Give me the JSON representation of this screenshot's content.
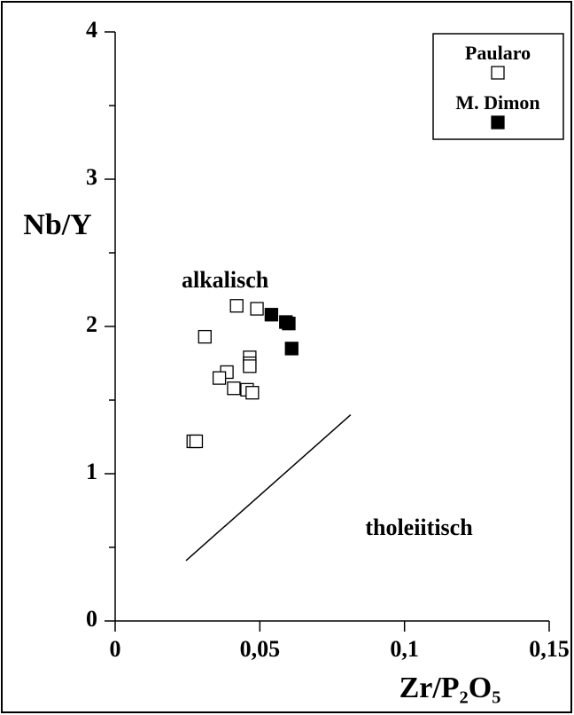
{
  "chart_data": {
    "type": "scatter",
    "x_label": "Zr/P₂O₅",
    "y_label": "Nb/Y",
    "xlim": [
      0,
      0.15
    ],
    "ylim": [
      0,
      4
    ],
    "xticks": [
      0,
      {
        "value": 0.05,
        "label": "0,05"
      },
      {
        "value": 0.1,
        "label": "0,1"
      },
      {
        "value": 0.15,
        "label": "0,15"
      }
    ],
    "yticks": [
      0,
      1,
      2,
      3,
      4
    ],
    "y_minor_ticks": [
      0.5,
      1.5,
      2.5,
      3.5
    ],
    "legend": "upper right",
    "series": [
      {
        "name": "Paularo",
        "color": "#000000",
        "filled": false,
        "x": [
          0.027,
          0.028,
          0.031,
          0.042,
          0.049,
          0.0386,
          0.036,
          0.041,
          0.0465,
          0.0465,
          0.0465,
          0.0456,
          0.0474
        ],
        "y": [
          1.22,
          1.22,
          1.93,
          2.14,
          2.12,
          1.69,
          1.65,
          1.58,
          1.79,
          1.75,
          1.73,
          1.57,
          1.55
        ]
      },
      {
        "name": "M. Dimon",
        "color": "#000000",
        "filled": true,
        "x": [
          0.054,
          0.059,
          0.06,
          0.061
        ],
        "y": [
          2.08,
          2.03,
          2.02,
          1.85
        ]
      }
    ],
    "boundary_line": {
      "x": [
        0.0245,
        0.0814
      ],
      "y": [
        0.41,
        1.4
      ]
    },
    "annotations": [
      {
        "text": "alkalisch",
        "x": 0.038,
        "y": 2.3
      },
      {
        "text": "tholeiitisch",
        "x": 0.105,
        "y": 0.62
      }
    ]
  }
}
